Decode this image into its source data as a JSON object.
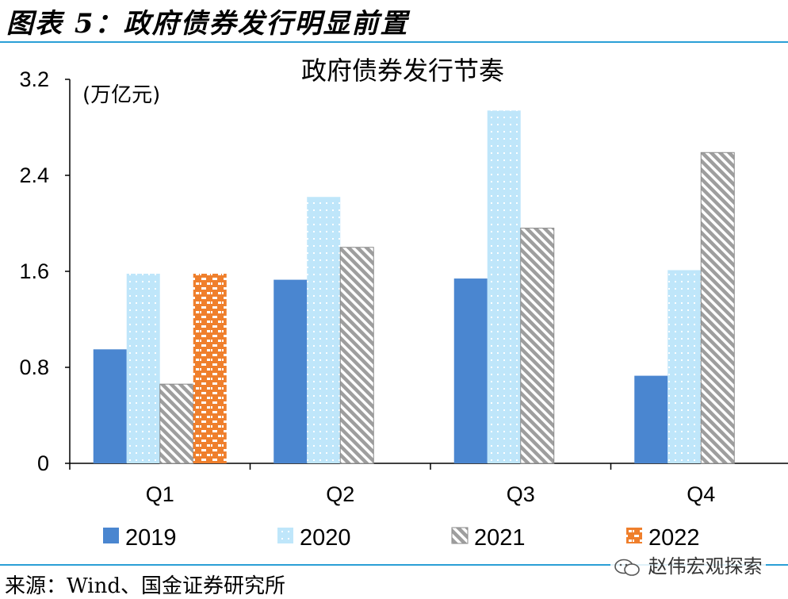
{
  "figure": {
    "title": "图表 5：政府债券发行明显前置"
  },
  "chart_data": {
    "type": "bar",
    "title": "政府债券发行节奏",
    "unit_label": "(万亿元)",
    "categories": [
      "Q1",
      "Q2",
      "Q3",
      "Q4"
    ],
    "ylim": [
      0,
      3.2
    ],
    "yticks": [
      0,
      0.8,
      1.6,
      2.4,
      3.2
    ],
    "ytick_labels": [
      "0",
      "0.8",
      "1.6",
      "2.4",
      "3.2"
    ],
    "series": [
      {
        "name": "2019",
        "values": [
          0.95,
          1.53,
          1.54,
          0.73
        ],
        "color": "#4a86d0",
        "pattern": "solid"
      },
      {
        "name": "2020",
        "values": [
          1.58,
          2.22,
          2.94,
          1.61
        ],
        "color": "#bfe6fa",
        "pattern": "dots"
      },
      {
        "name": "2021",
        "values": [
          0.66,
          1.8,
          1.96,
          2.59
        ],
        "color": "#9e9e9e",
        "pattern": "diagonal"
      },
      {
        "name": "2022",
        "values": [
          1.58,
          null,
          null,
          null
        ],
        "color": "#ef7f2c",
        "pattern": "brick"
      }
    ],
    "legend_position": "bottom",
    "grid": false
  },
  "source": {
    "text": "来源：Wind、国金证券研究所"
  },
  "watermark": {
    "text": "赵伟宏观探索"
  }
}
